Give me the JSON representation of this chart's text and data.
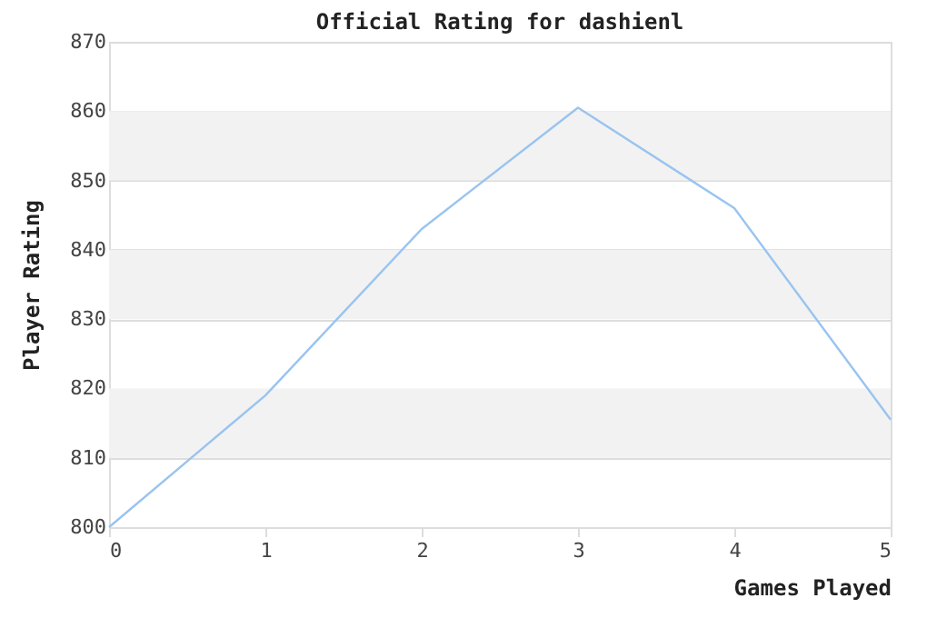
{
  "chart_data": {
    "type": "line",
    "title": "Official Rating for dashienl",
    "xlabel": "Games Played",
    "ylabel": "Player Rating",
    "x": [
      0,
      1,
      2,
      3,
      4,
      5
    ],
    "series": [
      {
        "color": "#99c4f0",
        "values": [
          800,
          819,
          843,
          860.5,
          846,
          815.5
        ]
      }
    ],
    "xlim": [
      0,
      5
    ],
    "xticks": [
      0,
      1,
      2,
      3,
      4,
      5
    ],
    "ylim": [
      800,
      870
    ],
    "yticks": [
      800,
      810,
      820,
      830,
      840,
      850,
      860,
      870
    ],
    "bands": [
      {
        "axis": "y",
        "from": 810,
        "to": 820,
        "color": "#f2f2f2"
      },
      {
        "axis": "y",
        "from": 830,
        "to": 840,
        "color": "#f2f2f2"
      },
      {
        "axis": "y",
        "from": 850,
        "to": 860,
        "color": "#f2f2f2"
      }
    ],
    "grid": "y",
    "marker": "none",
    "line_style": "solid"
  }
}
